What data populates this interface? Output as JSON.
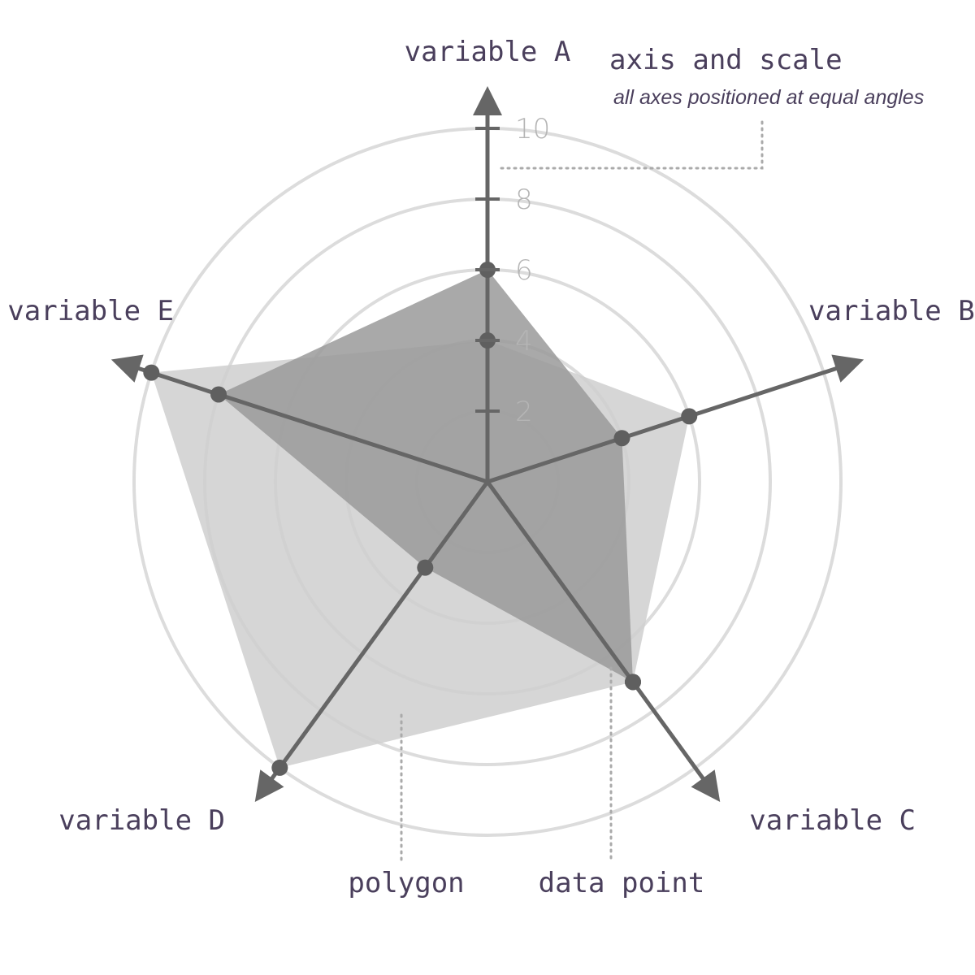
{
  "chart_data": {
    "type": "radar",
    "axes": [
      "variable A",
      "variable B",
      "variable C",
      "variable D",
      "variable E"
    ],
    "r_ticks": [
      2,
      4,
      6,
      8,
      10
    ],
    "r_max": 10,
    "grid": true,
    "series": [
      {
        "values": [
          4,
          6,
          7,
          10,
          10
        ],
        "color": "#cfcfcf"
      },
      {
        "values": [
          6,
          4,
          7,
          3,
          8
        ],
        "color": "#9a9a9a"
      }
    ],
    "annotations": {
      "scale_title": "axis and scale",
      "scale_subtitle": "all axes positioned at equal angles",
      "polygon_label": "polygon",
      "point_label": "data point"
    }
  },
  "colors": {
    "grid": "#dcdcdc",
    "axis": "#666666",
    "text": "#4a3f5c",
    "tick_text": "#b5b5b5",
    "leader": "#aaaaaa"
  }
}
